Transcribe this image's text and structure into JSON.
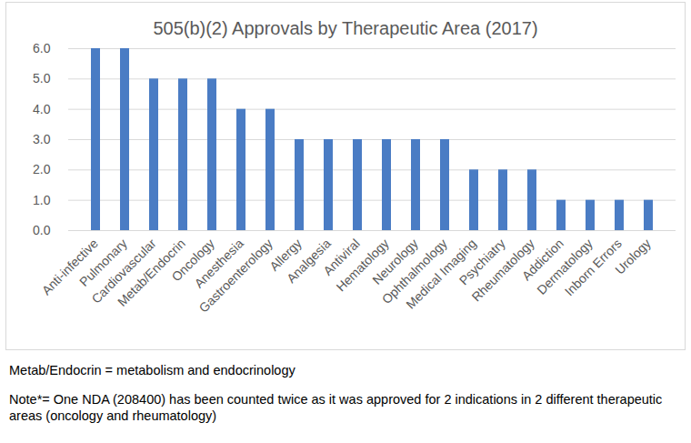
{
  "chart_data": {
    "type": "bar",
    "title": "505(b)(2) Approvals by Therapeutic Area (2017)",
    "categories": [
      "Anti-infective",
      "Pulmonary",
      "Cardiovascular",
      "Metab/Endocrin",
      "Oncology",
      "Anesthesia",
      "Gastroenterology",
      "Allergy",
      "Analgesia",
      "Antiviral",
      "Hematology",
      "Neurology",
      "Ophthalmology",
      "Medical Imaging",
      "Psychiatry",
      "Rheumatology",
      "Addiction",
      "Dermatology",
      "Inborn Errors",
      "Urology"
    ],
    "values": [
      6,
      6,
      5,
      5,
      5,
      4,
      4,
      3,
      3,
      3,
      3,
      3,
      3,
      2,
      2,
      2,
      1,
      1,
      1,
      1
    ],
    "color": "#4a7cc4",
    "ylim": [
      0,
      6
    ],
    "yticks": [
      0,
      1,
      2,
      3,
      4,
      5,
      6
    ],
    "grid": true,
    "annotations": [
      "Metab/Endocrin = metabolism and endocrinology",
      "Note*= One NDA (208400) has been counted twice as it was approved for 2 indications in 2 different therapeutic areas (oncology and rheumatology)"
    ]
  }
}
